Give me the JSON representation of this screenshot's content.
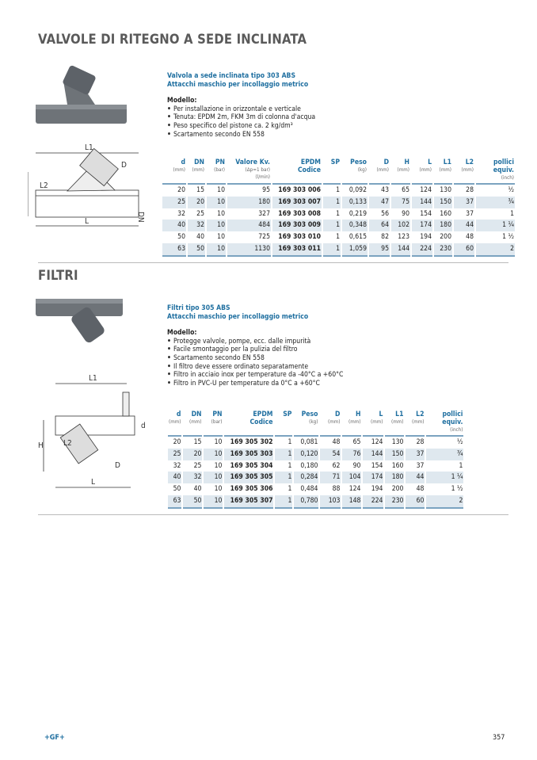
{
  "section1": {
    "title": "VALVOLE DI RITEGNO A SEDE INCLINATA",
    "subtitle1": "Valvola a sede inclinata tipo 303 ABS",
    "subtitle2": "Attacchi maschio per incollaggio metrico",
    "model_label": "Modello:",
    "bullets": [
      "Per installazione in orizzontale e verticale",
      "Tenuta: EPDM 2m, FKM 3m di colonna d'acqua",
      "Peso specifico del pistone ca. 2 kg/dm³",
      "Scartamento secondo EN 558"
    ],
    "drawing_labels": {
      "l1": "L1",
      "d": "D",
      "h": "H",
      "l2": "L2",
      "dn": "DN",
      "l": "L"
    },
    "table": {
      "headers": [
        [
          "d",
          "(mm)"
        ],
        [
          "DN",
          "(mm)"
        ],
        [
          "PN",
          "(bar)"
        ],
        [
          "Valore Kv.",
          "(Δp=1 bar)",
          "(l/min)"
        ],
        [
          "EPDM",
          "Codice"
        ],
        [
          "SP",
          ""
        ],
        [
          "Peso",
          "(kg)"
        ],
        [
          "D",
          "(mm)"
        ],
        [
          "H",
          "(mm)"
        ],
        [
          "L",
          "(mm)"
        ],
        [
          "L1",
          "(mm)"
        ],
        [
          "L2",
          "(mm)"
        ],
        [
          "pollici",
          "equiv.",
          "(inch)"
        ]
      ],
      "rows": [
        [
          "20",
          "15",
          "10",
          "95",
          "169 303 006",
          "1",
          "0,092",
          "43",
          "65",
          "124",
          "130",
          "28",
          "½"
        ],
        [
          "25",
          "20",
          "10",
          "180",
          "169 303 007",
          "1",
          "0,133",
          "47",
          "75",
          "144",
          "150",
          "37",
          "¾"
        ],
        [
          "32",
          "25",
          "10",
          "327",
          "169 303 008",
          "1",
          "0,219",
          "56",
          "90",
          "154",
          "160",
          "37",
          "1"
        ],
        [
          "40",
          "32",
          "10",
          "484",
          "169 303 009",
          "1",
          "0,348",
          "64",
          "102",
          "174",
          "180",
          "44",
          "1 ¼"
        ],
        [
          "50",
          "40",
          "10",
          "725",
          "169 303 010",
          "1",
          "0,615",
          "82",
          "123",
          "194",
          "200",
          "48",
          "1 ½"
        ],
        [
          "63",
          "50",
          "10",
          "1130",
          "169 303 011",
          "1",
          "1,059",
          "95",
          "144",
          "224",
          "230",
          "60",
          "2"
        ]
      ]
    }
  },
  "section2": {
    "title": "FILTRI",
    "subtitle1": "Filtri tipo 305 ABS",
    "subtitle2": "Attacchi maschio per incollaggio metrico",
    "model_label": "Modello:",
    "bullets": [
      "Protegge valvole, pompe, ecc. dalle impurità",
      "Facile smontaggio per la pulizia del filtro",
      "Scartamento secondo EN 558",
      "Il filtro deve essere ordinato separatamente",
      "Filtro in acciaio inox per temperature da -40°C a +60°C",
      "Filtro in PVC-U per temperature da 0°C a +60°C"
    ],
    "drawing_labels": {
      "l1": "L1",
      "d": "d",
      "h": "H",
      "l2": "L2",
      "dd": "D",
      "l": "L"
    },
    "table": {
      "headers": [
        [
          "d",
          "(mm)"
        ],
        [
          "DN",
          "(mm)"
        ],
        [
          "PN",
          "(bar)"
        ],
        [
          "EPDM",
          "Codice"
        ],
        [
          "SP",
          ""
        ],
        [
          "Peso",
          "(kg)"
        ],
        [
          "D",
          "(mm)"
        ],
        [
          "H",
          "(mm)"
        ],
        [
          "L",
          "(mm)"
        ],
        [
          "L1",
          "(mm)"
        ],
        [
          "L2",
          "(mm)"
        ],
        [
          "pollici",
          "equiv.",
          "(inch)"
        ]
      ],
      "rows": [
        [
          "20",
          "15",
          "10",
          "169 305 302",
          "1",
          "0,081",
          "48",
          "65",
          "124",
          "130",
          "28",
          "½"
        ],
        [
          "25",
          "20",
          "10",
          "169 305 303",
          "1",
          "0,120",
          "54",
          "76",
          "144",
          "150",
          "37",
          "¾"
        ],
        [
          "32",
          "25",
          "10",
          "169 305 304",
          "1",
          "0,180",
          "62",
          "90",
          "154",
          "160",
          "37",
          "1"
        ],
        [
          "40",
          "32",
          "10",
          "169 305 305",
          "1",
          "0,284",
          "71",
          "104",
          "174",
          "180",
          "44",
          "1 ¼"
        ],
        [
          "50",
          "40",
          "10",
          "169 305 306",
          "1",
          "0,484",
          "88",
          "124",
          "194",
          "200",
          "48",
          "1 ½"
        ],
        [
          "63",
          "50",
          "10",
          "169 305 307",
          "1",
          "0,780",
          "103",
          "148",
          "224",
          "230",
          "60",
          "2"
        ]
      ]
    }
  },
  "footer": {
    "logo": "+GF+",
    "page": "357"
  },
  "colors": {
    "accent": "#1f6fa0",
    "stripe": "#dfe8ef",
    "title": "#5a5a5a",
    "pvc": "#6e7378"
  }
}
